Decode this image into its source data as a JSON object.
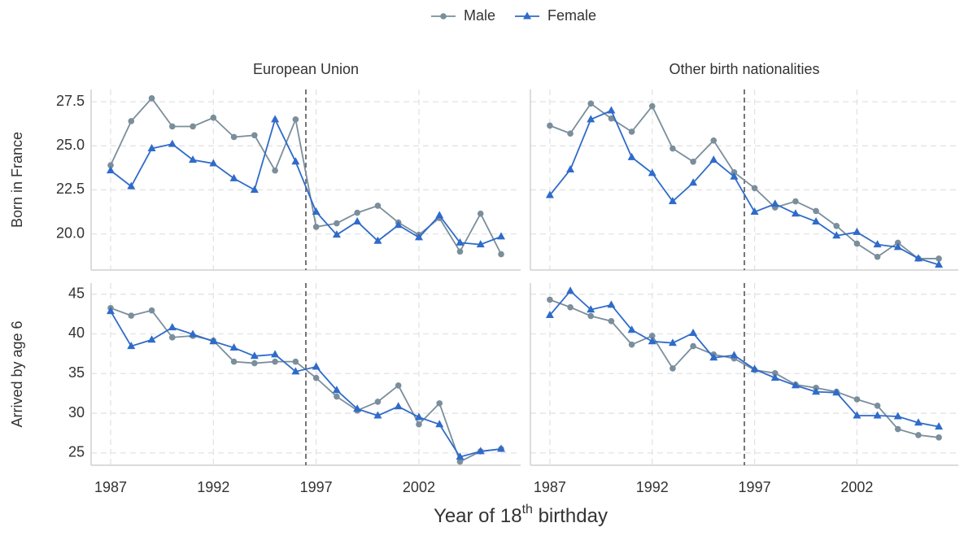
{
  "xlabel": "Year of 18th birthday",
  "chart_data": [
    {
      "type": "line",
      "title": "European Union",
      "ylabel": "Born in France",
      "x": [
        1987,
        1988,
        1989,
        1990,
        1991,
        1992,
        1993,
        1994,
        1995,
        1996,
        1997,
        1998,
        1999,
        2000,
        2001,
        2002,
        2003,
        2004,
        2005,
        2006
      ],
      "series": [
        {
          "name": "Male",
          "color": "#7a8e9b",
          "marker": "circle",
          "values": [
            23.9,
            26.4,
            27.7,
            26.1,
            26.1,
            26.6,
            25.5,
            25.6,
            23.6,
            26.5,
            20.4,
            20.6,
            21.2,
            21.6,
            20.65,
            19.95,
            20.9,
            19.0,
            21.15,
            18.85
          ]
        },
        {
          "name": "Female",
          "color": "#2f6bc9",
          "marker": "triangle",
          "values": [
            23.6,
            22.7,
            24.85,
            25.1,
            24.2,
            24.0,
            23.15,
            22.5,
            26.5,
            24.1,
            21.25,
            19.95,
            20.7,
            19.6,
            20.5,
            19.8,
            21.05,
            19.5,
            19.4,
            19.85
          ]
        }
      ],
      "xlim": [
        1986.05,
        2006.95
      ],
      "ylim": [
        17.95,
        28.2
      ],
      "xticks": [
        1987,
        1992,
        1997,
        2002
      ],
      "yticks": [
        {
          "value": 20,
          "label": "20.0"
        },
        22.5,
        {
          "value": 25,
          "label": "25.0"
        },
        27.5
      ],
      "vline": 1996.5,
      "grid": true
    },
    {
      "type": "line",
      "title": "Other birth nationalities",
      "x": [
        1987,
        1988,
        1989,
        1990,
        1991,
        1992,
        1993,
        1994,
        1995,
        1996,
        1997,
        1998,
        1999,
        2000,
        2001,
        2002,
        2003,
        2004,
        2005,
        2006
      ],
      "series": [
        {
          "name": "Male",
          "color": "#7a8e9b",
          "marker": "circle",
          "values": [
            26.15,
            25.7,
            27.4,
            26.55,
            25.8,
            27.25,
            24.85,
            24.1,
            25.3,
            23.5,
            22.6,
            21.5,
            21.85,
            21.3,
            20.45,
            19.45,
            18.7,
            19.5,
            18.6,
            18.6
          ]
        },
        {
          "name": "Female",
          "color": "#2f6bc9",
          "marker": "triangle",
          "values": [
            22.2,
            23.65,
            26.5,
            27.0,
            24.35,
            23.45,
            21.85,
            22.9,
            24.2,
            23.25,
            21.25,
            21.7,
            21.15,
            20.7,
            19.9,
            20.1,
            19.4,
            19.25,
            18.6,
            18.25
          ]
        }
      ],
      "xlim": [
        1986.05,
        2006.95
      ],
      "ylim": [
        17.95,
        28.2
      ],
      "xticks": [
        1987,
        1992,
        1997,
        2002
      ],
      "yticks": [
        20,
        22.5,
        25,
        27.5
      ],
      "vline": 1996.5,
      "grid": true
    },
    {
      "type": "line",
      "ylabel": "Arrived by age 6",
      "x": [
        1987,
        1988,
        1989,
        1990,
        1991,
        1992,
        1993,
        1994,
        1995,
        1996,
        1997,
        1998,
        1999,
        2000,
        2001,
        2002,
        2003,
        2004,
        2005,
        2006
      ],
      "series": [
        {
          "name": "Male",
          "color": "#7a8e9b",
          "marker": "circle",
          "values": [
            43.25,
            42.3,
            42.95,
            39.55,
            39.75,
            39.15,
            36.5,
            36.3,
            36.5,
            36.5,
            34.45,
            32.1,
            30.35,
            31.45,
            33.5,
            28.6,
            31.25,
            23.9,
            25.2,
            25.5
          ]
        },
        {
          "name": "Female",
          "color": "#2f6bc9",
          "marker": "triangle",
          "values": [
            42.85,
            38.45,
            39.25,
            40.8,
            39.95,
            39.05,
            38.25,
            37.2,
            37.4,
            35.25,
            35.85,
            32.9,
            30.55,
            29.7,
            30.85,
            29.5,
            28.6,
            24.5,
            25.2,
            25.5
          ]
        }
      ],
      "xlim": [
        1986.05,
        2006.95
      ],
      "ylim": [
        23.45,
        46.4
      ],
      "xticks": [
        1987,
        1992,
        1997,
        2002
      ],
      "yticks": [
        25,
        30,
        35,
        40,
        45
      ],
      "vline": 1996.5,
      "grid": true
    },
    {
      "type": "line",
      "x": [
        1987,
        1988,
        1989,
        1990,
        1991,
        1992,
        1993,
        1994,
        1995,
        1996,
        1997,
        1998,
        1999,
        2000,
        2001,
        2002,
        2003,
        2004,
        2005,
        2006
      ],
      "series": [
        {
          "name": "Male",
          "color": "#7a8e9b",
          "marker": "circle",
          "values": [
            44.3,
            43.35,
            42.25,
            41.6,
            38.65,
            39.75,
            35.65,
            38.45,
            37.4,
            36.9,
            35.45,
            35.05,
            33.6,
            33.2,
            32.7,
            31.75,
            30.95,
            28.0,
            27.25,
            26.95
          ]
        },
        {
          "name": "Female",
          "color": "#2f6bc9",
          "marker": "triangle",
          "values": [
            42.35,
            45.4,
            43.05,
            43.65,
            40.5,
            39.05,
            38.85,
            40.1,
            37.0,
            37.3,
            35.55,
            34.45,
            33.5,
            32.7,
            32.6,
            29.7,
            29.7,
            29.6,
            28.8,
            28.3
          ]
        }
      ],
      "xlim": [
        1986.05,
        2006.95
      ],
      "ylim": [
        23.45,
        46.4
      ],
      "xticks": [
        1987,
        1992,
        1997,
        2002
      ],
      "yticks": [
        25,
        30,
        35,
        40,
        45
      ],
      "vline": 1996.5,
      "grid": true
    }
  ]
}
